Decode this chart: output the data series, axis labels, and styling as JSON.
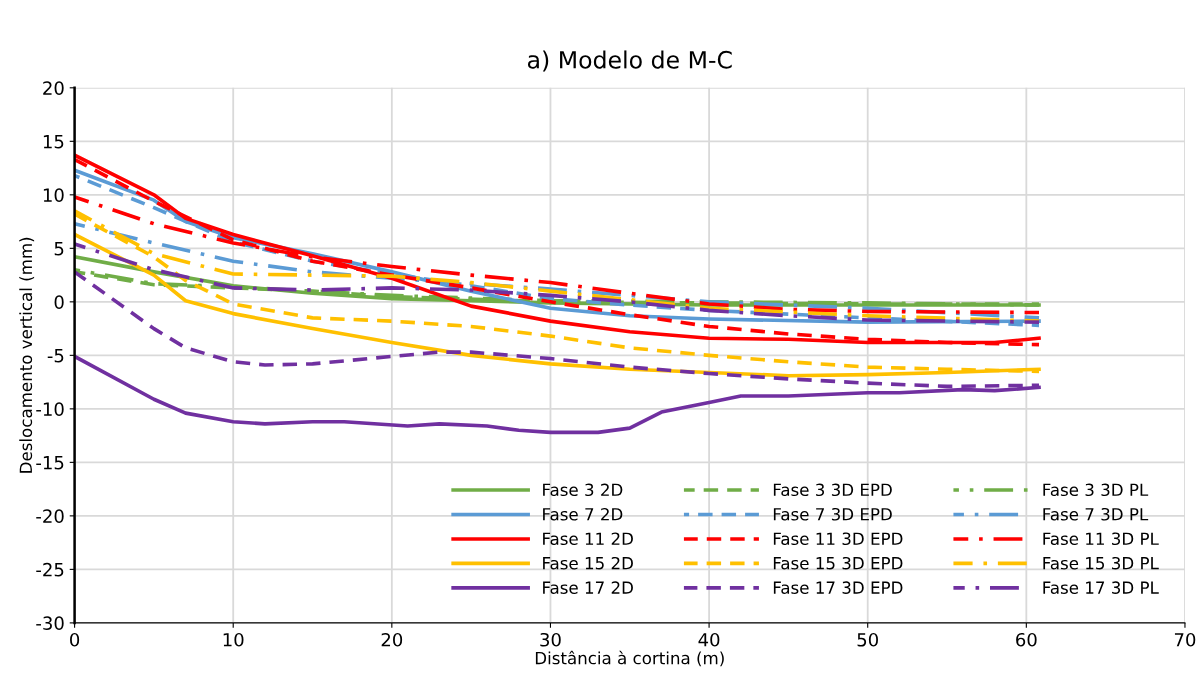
{
  "chart_data": {
    "type": "line",
    "title": "a) Modelo de M-C",
    "xlabel": "Distância à cortina (m)",
    "ylabel": "Deslocamento vertical (mm)",
    "xlim": [
      0,
      70
    ],
    "xticks": [
      0,
      10,
      20,
      30,
      40,
      50,
      60,
      70
    ],
    "ylim": [
      -30,
      20
    ],
    "yticks": [
      -30,
      -25,
      -20,
      -15,
      -10,
      -5,
      0,
      5,
      10,
      15,
      20
    ],
    "grid": true,
    "legend": "bottom right",
    "marker": "none",
    "series": [
      {
        "name": "Fase 3 2D",
        "color": "#70ad47",
        "line_style": "solid",
        "x": [
          0,
          5,
          10,
          15,
          20,
          25,
          30,
          40,
          50,
          60.8
        ],
        "values": [
          4.2,
          2.8,
          1.5,
          0.8,
          0.3,
          0.1,
          -0.1,
          -0.3,
          -0.3,
          -0.3
        ]
      },
      {
        "name": "Fase 3 3D EPD",
        "color": "#70ad47",
        "line_style": "dashed",
        "x": [
          0,
          5,
          10,
          15,
          20,
          30,
          40,
          50,
          60.8
        ],
        "values": [
          2.8,
          1.6,
          1.3,
          1.0,
          0.5,
          0.0,
          -0.1,
          -0.2,
          -0.2
        ]
      },
      {
        "name": "Fase 3 3D PL",
        "color": "#70ad47",
        "line_style": "dashdot",
        "x": [
          0,
          5,
          10,
          20,
          30,
          40,
          50,
          60.8
        ],
        "values": [
          3.0,
          1.7,
          1.4,
          0.6,
          0.1,
          0.0,
          -0.1,
          -0.3
        ]
      },
      {
        "name": "Fase 7 2D",
        "color": "#5b9bd5",
        "line_style": "solid",
        "x": [
          0,
          5,
          7,
          10,
          15,
          20,
          25,
          30,
          35,
          40,
          50,
          60.8
        ],
        "values": [
          12.3,
          9.5,
          7.5,
          6.0,
          4.5,
          2.8,
          1.0,
          -0.6,
          -1.3,
          -1.6,
          -1.9,
          -1.8
        ]
      },
      {
        "name": "Fase 7 3D EPD",
        "color": "#5b9bd5",
        "line_style": "dashed",
        "x": [
          0,
          5,
          10,
          15,
          20,
          25,
          30,
          35,
          40,
          50,
          60.8
        ],
        "values": [
          11.8,
          8.8,
          5.6,
          3.8,
          2.6,
          1.5,
          0.3,
          -0.3,
          -0.8,
          -1.5,
          -2.2
        ]
      },
      {
        "name": "Fase 7 3D PL",
        "color": "#5b9bd5",
        "line_style": "dashdot",
        "x": [
          0,
          5,
          10,
          15,
          20,
          25,
          30,
          35,
          40,
          50,
          60.8
        ],
        "values": [
          7.3,
          5.5,
          3.8,
          2.8,
          2.2,
          1.7,
          1.2,
          0.6,
          0.0,
          -0.6,
          -1.5
        ]
      },
      {
        "name": "Fase 11 2D",
        "color": "#ff0000",
        "line_style": "solid",
        "x": [
          0,
          5,
          7,
          10,
          15,
          20,
          25,
          30,
          35,
          40,
          45,
          50,
          55,
          58,
          60.8
        ],
        "values": [
          13.7,
          10.0,
          7.8,
          6.3,
          4.3,
          2.2,
          -0.4,
          -1.8,
          -2.8,
          -3.4,
          -3.5,
          -3.8,
          -3.8,
          -3.8,
          -3.4
        ]
      },
      {
        "name": "Fase 11 3D EPD",
        "color": "#ff0000",
        "line_style": "dashed",
        "x": [
          0,
          5,
          10,
          15,
          20,
          25,
          30,
          35,
          40,
          45,
          50,
          55,
          60.8
        ],
        "values": [
          13.3,
          9.4,
          5.8,
          3.8,
          2.5,
          1.3,
          0.0,
          -1.2,
          -2.3,
          -3.0,
          -3.5,
          -3.8,
          -4.0
        ]
      },
      {
        "name": "Fase 11 3D PL",
        "color": "#ff0000",
        "line_style": "dashdot",
        "x": [
          0,
          5,
          10,
          15,
          20,
          25,
          30,
          35,
          40,
          45,
          50,
          60.8
        ],
        "values": [
          9.8,
          7.3,
          5.5,
          4.2,
          3.3,
          2.5,
          1.8,
          0.8,
          -0.2,
          -0.7,
          -0.9,
          -1.0
        ]
      },
      {
        "name": "Fase 15 2D",
        "color": "#ffc000",
        "line_style": "solid",
        "x": [
          0,
          5,
          7,
          10,
          15,
          20,
          25,
          30,
          35,
          40,
          45,
          50,
          55,
          60.8
        ],
        "values": [
          6.3,
          2.5,
          0.1,
          -1.1,
          -2.5,
          -3.8,
          -5.0,
          -5.8,
          -6.3,
          -6.6,
          -6.9,
          -6.8,
          -6.6,
          -6.3
        ]
      },
      {
        "name": "Fase 15 3D EPD",
        "color": "#ffc000",
        "line_style": "dashed",
        "x": [
          0,
          5,
          7,
          10,
          15,
          20,
          25,
          30,
          35,
          40,
          45,
          50,
          55,
          60.8
        ],
        "values": [
          8.2,
          4.2,
          2.0,
          -0.2,
          -1.5,
          -1.8,
          -2.3,
          -3.2,
          -4.3,
          -5.0,
          -5.6,
          -6.1,
          -6.3,
          -6.5
        ]
      },
      {
        "name": "Fase 15 3D PL",
        "color": "#ffc000",
        "line_style": "dashdot",
        "x": [
          0,
          5,
          10,
          15,
          20,
          25,
          30,
          35,
          40,
          50,
          60.8
        ],
        "values": [
          8.5,
          4.5,
          2.6,
          2.5,
          2.4,
          1.8,
          1.0,
          0.2,
          -0.6,
          -1.3,
          -1.8
        ]
      },
      {
        "name": "Fase 17 2D",
        "color": "#7030a0",
        "line_style": "solid",
        "x": [
          0,
          5,
          7,
          10,
          12,
          15,
          17,
          21,
          23,
          26,
          28,
          30,
          33,
          35,
          37,
          40,
          42,
          45,
          50,
          52,
          56,
          58,
          60.8
        ],
        "values": [
          -5.1,
          -9.1,
          -10.4,
          -11.2,
          -11.4,
          -11.2,
          -11.2,
          -11.6,
          -11.4,
          -11.6,
          -12.0,
          -12.2,
          -12.2,
          -11.8,
          -10.3,
          -9.4,
          -8.8,
          -8.8,
          -8.5,
          -8.5,
          -8.2,
          -8.3,
          -8.0
        ]
      },
      {
        "name": "Fase 17 3D EPD",
        "color": "#7030a0",
        "line_style": "dashed",
        "x": [
          0,
          5,
          7,
          10,
          12,
          15,
          20,
          23,
          25,
          30,
          35,
          40,
          45,
          50,
          55,
          60.8
        ],
        "values": [
          2.8,
          -2.5,
          -4.3,
          -5.6,
          -5.9,
          -5.8,
          -5.1,
          -4.7,
          -4.7,
          -5.3,
          -6.1,
          -6.7,
          -7.2,
          -7.6,
          -7.9,
          -7.8
        ]
      },
      {
        "name": "Fase 17 3D PL",
        "color": "#7030a0",
        "line_style": "dashdot",
        "x": [
          0,
          5,
          10,
          15,
          20,
          25,
          30,
          35,
          40,
          45,
          50,
          60.8
        ],
        "values": [
          5.4,
          3.0,
          1.3,
          1.1,
          1.3,
          1.1,
          0.6,
          0.0,
          -0.8,
          -1.3,
          -1.7,
          -1.9
        ]
      }
    ]
  }
}
